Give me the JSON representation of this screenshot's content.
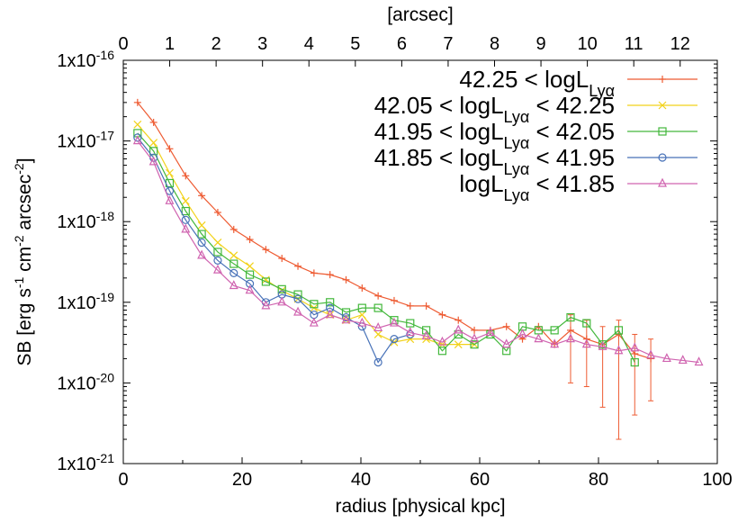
{
  "chart_data": {
    "type": "line",
    "xlabel": "radius [physical kpc]",
    "ylabel": "SB [erg s^-1 cm^-2 arcsec^-2]",
    "x2label": "[arcsec]",
    "xlim": [
      0,
      100
    ],
    "ylim": [
      1e-21,
      1e-16
    ],
    "yscale": "log",
    "x2lim": [
      0,
      12.8
    ],
    "x_ticks": [
      0,
      20,
      40,
      60,
      80,
      100
    ],
    "x2_ticks": [
      0,
      1,
      2,
      3,
      4,
      5,
      6,
      7,
      8,
      9,
      10,
      11,
      12
    ],
    "y_ticks": [
      1e-21,
      1e-20,
      1e-19,
      1e-18,
      1e-17,
      1e-16
    ],
    "legend_position": "top-right",
    "colors": {
      "s1": "#ee5b32",
      "s2": "#f2d21b",
      "s3": "#43b83c",
      "s4": "#4872b8",
      "s5": "#d064b0"
    },
    "series": [
      {
        "name": "42.25 < logL_Lyα",
        "legend_main": "42.25 < logL",
        "legend_sub": "Lyα",
        "legend_tail": "",
        "marker": "plus",
        "x": [
          2.4,
          5.1,
          7.8,
          10.5,
          13.2,
          15.9,
          18.6,
          21.3,
          24,
          26.7,
          29.4,
          32.1,
          34.8,
          37.5,
          40.2,
          42.9,
          45.6,
          48.3,
          51,
          53.7,
          56.4,
          59.1,
          61.8,
          64.5,
          67.2,
          69.9,
          72.6,
          75.3,
          78,
          80.7,
          83.4,
          86.1,
          88.8
        ],
        "y": [
          3e-17,
          1.7e-17,
          8e-18,
          3.7e-18,
          2.1e-18,
          1.3e-18,
          8e-19,
          6e-19,
          4.5e-19,
          3.5e-19,
          2.8e-19,
          2.3e-19,
          2.2e-19,
          1.9e-19,
          1.5e-19,
          1.2e-19,
          1.05e-19,
          9e-20,
          9e-20,
          7e-20,
          6e-20,
          4.5e-20,
          4.5e-20,
          5e-20,
          3.5e-20,
          5e-20,
          3e-20,
          4.5e-20,
          3.5e-20,
          3e-20,
          4e-20,
          2.3e-20,
          2e-20
        ],
        "yerr_low": [
          null,
          null,
          null,
          null,
          null,
          null,
          null,
          null,
          null,
          null,
          null,
          null,
          null,
          null,
          null,
          null,
          null,
          null,
          null,
          null,
          null,
          null,
          null,
          null,
          null,
          null,
          null,
          1e-20,
          9e-21,
          5e-21,
          2e-21,
          4e-21,
          6e-21
        ],
        "yerr_high": [
          null,
          null,
          null,
          null,
          null,
          null,
          null,
          null,
          null,
          null,
          null,
          null,
          null,
          null,
          null,
          null,
          null,
          null,
          null,
          null,
          null,
          null,
          null,
          null,
          null,
          null,
          null,
          7e-20,
          6e-20,
          5e-20,
          6e-20,
          4e-20,
          3.5e-20
        ]
      },
      {
        "name": "42.05 < logL_Lyα < 42.25",
        "legend_main": "42.05 < logL",
        "legend_sub": "Lyα",
        "legend_tail": " < 42.25",
        "marker": "x",
        "x": [
          2.4,
          5.1,
          7.8,
          10.5,
          13.2,
          15.9,
          18.6,
          21.3,
          24,
          26.7,
          29.4,
          32.1,
          34.8,
          37.5,
          40.2,
          42.9,
          45.6,
          48.3,
          51,
          53.7,
          56.4,
          59.1
        ],
        "y": [
          1.6e-17,
          9.5e-18,
          4e-18,
          1.8e-18,
          9e-19,
          5.5e-19,
          3.8e-19,
          2.8e-19,
          1.9e-19,
          1.4e-19,
          1.1e-19,
          8.5e-20,
          7e-20,
          6e-20,
          7e-20,
          4e-20,
          3.2e-20,
          3.5e-20,
          3.5e-20,
          3e-20,
          3e-20,
          3e-20
        ],
        "yerr_low": [
          null,
          null,
          null,
          null,
          null,
          null,
          null,
          null,
          null,
          null,
          null,
          null,
          null,
          null,
          null,
          null,
          null,
          null,
          null,
          null,
          null,
          null
        ],
        "yerr_high": [
          null,
          null,
          null,
          null,
          null,
          null,
          null,
          null,
          null,
          null,
          null,
          null,
          null,
          null,
          null,
          null,
          null,
          null,
          null,
          null,
          null,
          null
        ]
      },
      {
        "name": "41.95 < logL_Lyα < 42.05",
        "legend_main": "41.95 < logL",
        "legend_sub": "Lyα",
        "legend_tail": " < 42.05",
        "marker": "square",
        "x": [
          2.4,
          5.1,
          7.8,
          10.5,
          13.2,
          15.9,
          18.6,
          21.3,
          24,
          26.7,
          29.4,
          32.1,
          34.8,
          37.5,
          40.2,
          42.9,
          45.6,
          48.3,
          51,
          53.7,
          56.4,
          59.1,
          61.8,
          64.5,
          67.2,
          69.9,
          72.6,
          75.3,
          78,
          80.7,
          83.4,
          86.1
        ],
        "y": [
          1.25e-17,
          7.5e-18,
          3e-18,
          1.35e-18,
          7e-19,
          4.2e-19,
          3e-19,
          2.2e-19,
          1.8e-19,
          1.45e-19,
          1.25e-19,
          9.5e-20,
          1e-19,
          7.5e-20,
          8.5e-20,
          8.5e-20,
          6e-20,
          5.5e-20,
          4.5e-20,
          2.5e-20,
          4e-20,
          3e-20,
          4e-20,
          2.5e-20,
          5e-20,
          4.5e-20,
          4.5e-20,
          6.5e-20,
          5.5e-20,
          3e-20,
          4.5e-20,
          1.8e-20
        ],
        "yerr_low": [
          null,
          null,
          null,
          null,
          null,
          null,
          null,
          null,
          null,
          null,
          null,
          null,
          null,
          null,
          null,
          null,
          null,
          null,
          null,
          null,
          null,
          null,
          null,
          null,
          null,
          null,
          null,
          null,
          null,
          null,
          null,
          null
        ],
        "yerr_high": [
          null,
          null,
          null,
          null,
          null,
          null,
          null,
          null,
          null,
          null,
          null,
          null,
          null,
          null,
          null,
          null,
          null,
          null,
          null,
          null,
          null,
          null,
          null,
          null,
          null,
          null,
          null,
          null,
          null,
          null,
          null,
          null
        ]
      },
      {
        "name": "41.85 < logL_Lyα < 41.95",
        "legend_main": "41.85 < logL",
        "legend_sub": "Lyα",
        "legend_tail": " < 41.95",
        "marker": "circle",
        "x": [
          2.4,
          5.1,
          7.8,
          10.5,
          13.2,
          15.9,
          18.6,
          21.3,
          24,
          26.7,
          29.4,
          32.1,
          34.8,
          37.5,
          40.2,
          42.9,
          45.6,
          48.3
        ],
        "y": [
          1.1e-17,
          6.2e-18,
          2.4e-18,
          1.05e-18,
          5.5e-19,
          3.3e-19,
          2.3e-19,
          1.7e-19,
          1e-19,
          1.25e-19,
          1.1e-19,
          7e-20,
          8.5e-20,
          6.5e-20,
          5e-20,
          1.8e-20,
          3.5e-20,
          4e-20
        ],
        "yerr_low": [
          null,
          null,
          null,
          null,
          null,
          null,
          null,
          null,
          null,
          null,
          null,
          null,
          null,
          null,
          null,
          null,
          null,
          null
        ],
        "yerr_high": [
          null,
          null,
          null,
          null,
          null,
          null,
          null,
          null,
          null,
          null,
          null,
          null,
          null,
          null,
          null,
          null,
          null,
          null
        ]
      },
      {
        "name": "logL_Lyα < 41.85",
        "legend_main": "logL",
        "legend_sub": "Lyα",
        "legend_tail": " < 41.85",
        "marker": "triangle",
        "x": [
          2.4,
          5.1,
          7.8,
          10.5,
          13.2,
          15.9,
          18.6,
          21.3,
          24,
          26.7,
          29.4,
          32.1,
          34.8,
          37.5,
          40.2,
          42.9,
          45.6,
          48.3,
          51,
          53.7,
          56.4,
          59.1,
          61.8,
          64.5,
          67.2,
          69.9,
          72.6,
          75.3,
          78,
          80.7,
          83.4,
          86.1,
          88.8,
          91.5,
          94.2,
          96.9
        ],
        "y": [
          1e-17,
          5.5e-18,
          1.8e-18,
          8e-19,
          3.8e-19,
          2.5e-19,
          1.6e-19,
          1.4e-19,
          9e-20,
          1e-19,
          7.5e-20,
          5.5e-20,
          7e-20,
          6e-20,
          5.5e-20,
          4.8e-20,
          5.5e-20,
          4.2e-20,
          3.8e-20,
          3.2e-20,
          4.5e-20,
          3.5e-20,
          4.2e-20,
          3e-20,
          4e-20,
          3.5e-20,
          3e-20,
          3.5e-20,
          3e-20,
          2.8e-20,
          2.5e-20,
          2.7e-20,
          2.2e-20,
          2e-20,
          1.9e-20,
          1.8e-20
        ],
        "yerr_low": [
          null,
          null,
          null,
          null,
          null,
          null,
          null,
          null,
          null,
          null,
          null,
          null,
          null,
          null,
          null,
          null,
          null,
          null,
          null,
          null,
          null,
          null,
          null,
          null,
          null,
          null,
          null,
          null,
          null,
          null,
          null,
          null,
          null,
          null,
          null,
          null
        ],
        "yerr_high": [
          null,
          null,
          null,
          null,
          null,
          null,
          null,
          null,
          null,
          null,
          null,
          null,
          null,
          null,
          null,
          null,
          null,
          null,
          null,
          null,
          null,
          null,
          null,
          null,
          null,
          null,
          null,
          null,
          null,
          null,
          null,
          null,
          null,
          null,
          null,
          null
        ]
      }
    ]
  }
}
